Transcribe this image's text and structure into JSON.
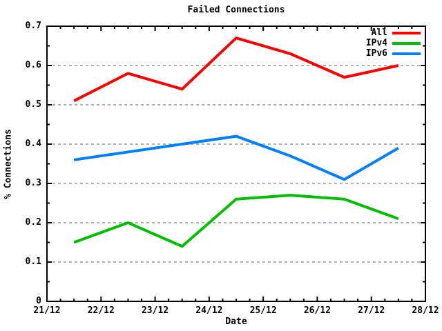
{
  "title": "Failed Connections",
  "axes": {
    "xlabel": "Date",
    "ylabel": "% Connections"
  },
  "colors": {
    "background": "#ffffff",
    "axis": "#000000",
    "grid": "#b0b0b0",
    "text": "#000000"
  },
  "chart_data": {
    "type": "line",
    "title": "Failed Connections",
    "xlabel": "Date",
    "ylabel": "% Connections",
    "grid": "horizontal dashed gridlines at major y ticks",
    "legend_position": "top-right inside plot, no frame",
    "x_axis": {
      "tick_labels": [
        "21/12",
        "22/12",
        "23/12",
        "24/12",
        "25/12",
        "26/12",
        "27/12",
        "28/12"
      ],
      "tick_positions_days": [
        0,
        1,
        2,
        3,
        4,
        5,
        6,
        7
      ],
      "minor_ticks_per_interval": 3,
      "range_days": [
        0,
        7
      ]
    },
    "y_axis": {
      "tick_labels": [
        "0",
        "0.1",
        "0.2",
        "0.3",
        "0.4",
        "0.5",
        "0.6",
        "0.7"
      ],
      "tick_values": [
        0,
        0.1,
        0.2,
        0.3,
        0.4,
        0.5,
        0.6,
        0.7
      ],
      "minor_ticks_per_interval": 1,
      "ylim": [
        0,
        0.7
      ]
    },
    "x_points_days": [
      0.5,
      1.5,
      2.5,
      3.5,
      4.5,
      5.5,
      6.5
    ],
    "series": [
      {
        "name": "All",
        "color": "#ff0000",
        "values": [
          0.51,
          0.58,
          0.54,
          0.67,
          0.63,
          0.57,
          0.6
        ]
      },
      {
        "name": "IPv4",
        "color": "#00c000",
        "values": [
          0.15,
          0.2,
          0.14,
          0.26,
          0.27,
          0.26,
          0.21
        ]
      },
      {
        "name": "IPv6",
        "color": "#0080ff",
        "values": [
          0.36,
          0.38,
          0.4,
          0.42,
          0.37,
          0.31,
          0.39
        ]
      }
    ]
  }
}
